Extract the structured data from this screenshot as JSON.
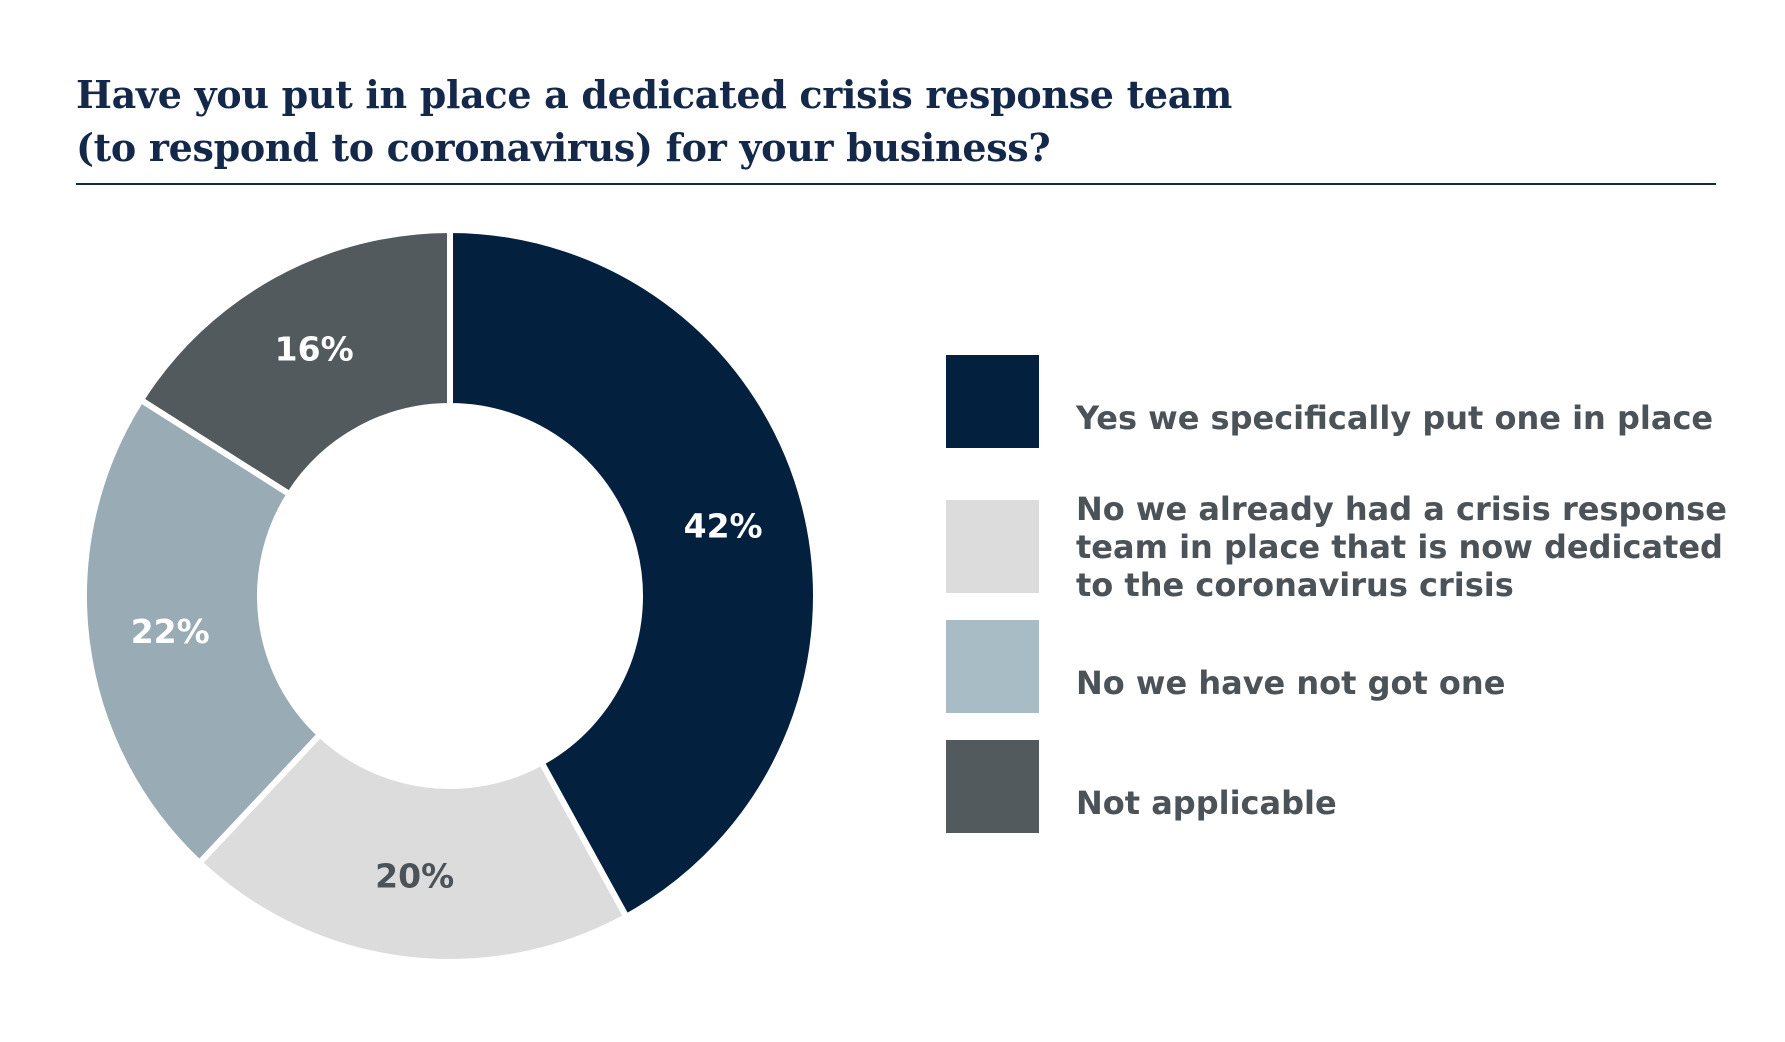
{
  "chart_data": {
    "type": "pie",
    "variant": "donut",
    "title_lines": [
      "Have you put in place a dedicated crisis response team",
      "(to respond to coronavirus) for your business?"
    ],
    "categories": [
      "Yes we specifically put one in place",
      "No we already had a crisis response team in place that is now dedicated to the coronavirus crisis",
      "No we have not got one",
      "Not applicable"
    ],
    "legend_lines": [
      [
        "Yes we specifically put one in place"
      ],
      [
        "No we already had a crisis response",
        "team in place that is now dedicated",
        "to the coronavirus crisis"
      ],
      [
        " No we have not got one"
      ],
      [
        "Not applicable"
      ]
    ],
    "values": [
      42,
      20,
      22,
      16
    ],
    "labels": [
      "42%",
      "20%",
      "22%",
      "16%"
    ],
    "colors": [
      "#03203f",
      "#dcdcdc",
      "#99abb4",
      "#525a5e"
    ],
    "swatch_colors": [
      "#03203f",
      "#dcdcdc",
      "#a8bcc6",
      "#525a5e"
    ],
    "label_colors": [
      "#ffffff",
      "#4b5258",
      "#ffffff",
      "#ffffff"
    ],
    "start_angle_deg": 0,
    "direction": "clockwise",
    "legend_position": "right"
  }
}
